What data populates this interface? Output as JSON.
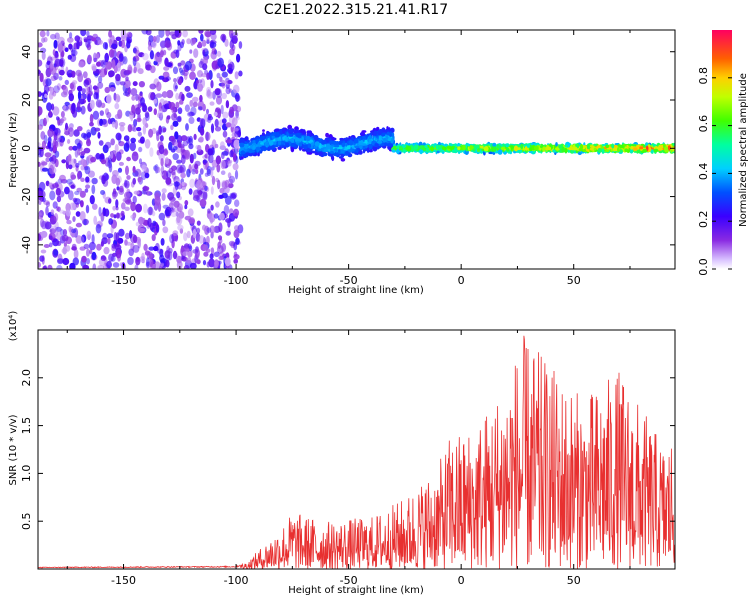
{
  "figure": {
    "title": "C2E1.2022.315.21.41.R17"
  },
  "chart_data": [
    {
      "type": "heatmap",
      "name": "spectrogram",
      "xlabel": "Height of straight line (km)",
      "ylabel": "Frequency (Hz)",
      "xlim": [
        -188,
        95
      ],
      "ylim": [
        -50,
        49
      ],
      "xticks": [
        "-150",
        "-100",
        "-50",
        "0",
        "50"
      ],
      "yticks": [
        "-40",
        "-20",
        "0",
        "20",
        "40"
      ],
      "colorbar": {
        "label": "Normalized spectral amplitude",
        "range": [
          0,
          1
        ],
        "ticks": [
          "0.0",
          "0.2",
          "0.4",
          "0.6",
          "0.8"
        ]
      },
      "regions": [
        {
          "x_range": [
            -188,
            -98
          ],
          "y_range": [
            -50,
            49
          ],
          "amplitude": [
            0.05,
            0.25
          ],
          "description_value": "broadband noise"
        },
        {
          "x_range": [
            -98,
            -30
          ],
          "center_freq": 2,
          "half_width": 5,
          "amplitude": [
            0.2,
            0.55
          ]
        },
        {
          "x_range": [
            -30,
            95
          ],
          "center_freq": 0,
          "half_width": 2,
          "amplitude": [
            0.3,
            1.0
          ]
        }
      ]
    },
    {
      "type": "line",
      "name": "snr",
      "xlabel": "Height of straight line (km)",
      "ylabel": "SNR (10 * v/v)",
      "y_multiplier": "(x10⁴)",
      "xlim": [
        -188,
        95
      ],
      "ylim": [
        0,
        25000
      ],
      "xticks": [
        "-150",
        "-100",
        "-50",
        "0",
        "50"
      ],
      "yticks": [
        "0.5",
        "1.0",
        "1.5",
        "2.0"
      ],
      "color": "#e83030",
      "envelope": [
        {
          "x": -188,
          "y": 200
        },
        {
          "x": -100,
          "y": 300
        },
        {
          "x": -95,
          "y": 800
        },
        {
          "x": -90,
          "y": 2000
        },
        {
          "x": -80,
          "y": 4500
        },
        {
          "x": -75,
          "y": 6000
        },
        {
          "x": -60,
          "y": 5000
        },
        {
          "x": -40,
          "y": 5500
        },
        {
          "x": -25,
          "y": 7500
        },
        {
          "x": -10,
          "y": 11000
        },
        {
          "x": -5,
          "y": 14000
        },
        {
          "x": 5,
          "y": 15000
        },
        {
          "x": 15,
          "y": 18000
        },
        {
          "x": 28,
          "y": 24500
        },
        {
          "x": 45,
          "y": 20000
        },
        {
          "x": 55,
          "y": 18000
        },
        {
          "x": 70,
          "y": 21000
        },
        {
          "x": 80,
          "y": 17000
        },
        {
          "x": 90,
          "y": 13000
        },
        {
          "x": 95,
          "y": 14500
        }
      ]
    }
  ]
}
